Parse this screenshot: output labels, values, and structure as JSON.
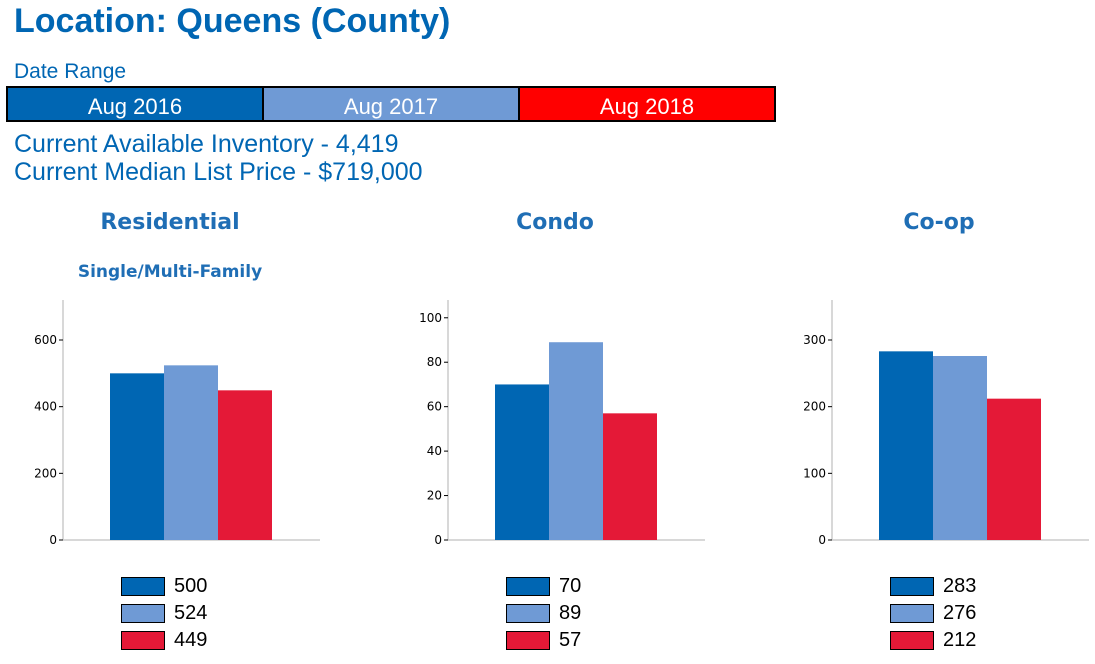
{
  "title": "Location: Queens (County)",
  "date_range": {
    "label": "Date Range",
    "periods": [
      {
        "label": "Aug 2016",
        "color": "#0066b3"
      },
      {
        "label": "Aug 2017",
        "color": "#6f9ad5"
      },
      {
        "label": "Aug 2018",
        "color": "#ff0000"
      }
    ]
  },
  "stats": {
    "inventory": "Current Available Inventory - 4,419",
    "median_price": "Current Median List Price - $719,000"
  },
  "chart_data": [
    {
      "type": "bar",
      "title": "Residential",
      "subtitle": "Single/Multi-Family",
      "series": [
        {
          "name": "Aug 2016",
          "values": [
            500
          ]
        },
        {
          "name": "Aug 2017",
          "values": [
            524
          ]
        },
        {
          "name": "Aug 2018",
          "values": [
            449
          ]
        }
      ],
      "colors": [
        "#0066b3",
        "#6f9ad5",
        "#e41937"
      ],
      "ylim": [
        0,
        720
      ],
      "yticks": [
        0,
        200,
        400,
        600
      ],
      "legend": "bottom",
      "legend_values": [
        "500",
        "524",
        "449"
      ]
    },
    {
      "type": "bar",
      "title": "Condo",
      "subtitle": "",
      "series": [
        {
          "name": "Aug 2016",
          "values": [
            70
          ]
        },
        {
          "name": "Aug 2017",
          "values": [
            89
          ]
        },
        {
          "name": "Aug 2018",
          "values": [
            57
          ]
        }
      ],
      "colors": [
        "#0066b3",
        "#6f9ad5",
        "#e41937"
      ],
      "ylim": [
        0,
        108
      ],
      "yticks": [
        0,
        20,
        40,
        60,
        80,
        100
      ],
      "legend": "bottom",
      "legend_values": [
        "70",
        "89",
        "57"
      ]
    },
    {
      "type": "bar",
      "title": "Co-op",
      "subtitle": "",
      "series": [
        {
          "name": "Aug 2016",
          "values": [
            283
          ]
        },
        {
          "name": "Aug 2017",
          "values": [
            276
          ]
        },
        {
          "name": "Aug 2018",
          "values": [
            212
          ]
        }
      ],
      "colors": [
        "#0066b3",
        "#6f9ad5",
        "#e41937"
      ],
      "ylim": [
        0,
        360
      ],
      "yticks": [
        0,
        100,
        200,
        300
      ],
      "legend": "bottom",
      "legend_values": [
        "283",
        "276",
        "212"
      ]
    }
  ]
}
